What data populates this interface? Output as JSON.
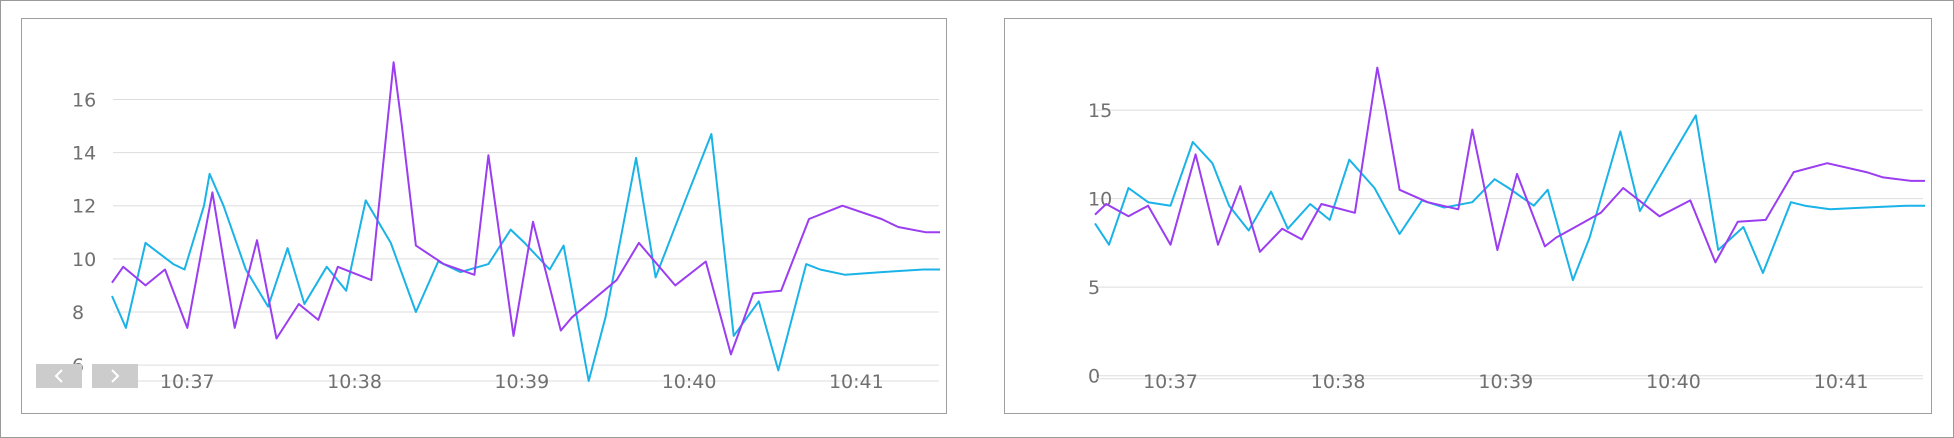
{
  "colors": {
    "series_a": "#1ab3e8",
    "series_b": "#9b3df0",
    "grid": "#dddddd",
    "axis_text": "#707070",
    "nav_button": "#cccccc"
  },
  "navigation": {
    "prev_icon": "chevron-left-icon",
    "next_icon": "chevron-right-icon"
  },
  "chart_data": [
    {
      "type": "line",
      "title": "",
      "xlabel": "",
      "ylabel": "",
      "grid": true,
      "xlim": [
        "10:36:33",
        "10:41:30"
      ],
      "ylim": [
        5.4,
        17.6
      ],
      "x_ticks": [
        "10:37",
        "10:38",
        "10:39",
        "10:40",
        "10:41"
      ],
      "y_ticks": [
        6,
        8,
        10,
        12,
        14,
        16
      ],
      "series": [
        {
          "color": "#1ab3e8",
          "x": [
            "10:36:33",
            "10:36:38",
            "10:36:45",
            "10:36:55",
            "10:36:59",
            "10:37:06",
            "10:37:08",
            "10:37:13",
            "10:37:21",
            "10:37:29",
            "10:37:36",
            "10:37:42",
            "10:37:50",
            "10:37:57",
            "10:38:04",
            "10:38:13",
            "10:38:22",
            "10:38:30",
            "10:38:38",
            "10:38:48",
            "10:38:56",
            "10:39:01",
            "10:39:10",
            "10:39:15",
            "10:39:24",
            "10:39:30",
            "10:39:41",
            "10:39:48",
            "10:39:59",
            "10:40:08",
            "10:40:16",
            "10:40:25",
            "10:40:32",
            "10:40:42",
            "10:40:47",
            "10:40:56",
            "10:41:09",
            "10:41:24",
            "10:41:30"
          ],
          "y": [
            8.6,
            7.4,
            10.6,
            9.8,
            9.6,
            12.0,
            13.2,
            12.0,
            9.6,
            8.2,
            10.4,
            8.3,
            9.7,
            8.8,
            12.2,
            10.6,
            8.0,
            9.9,
            9.5,
            9.8,
            11.1,
            10.6,
            9.6,
            10.5,
            5.4,
            7.8,
            13.8,
            9.3,
            12.3,
            14.7,
            7.1,
            8.4,
            5.8,
            9.8,
            9.6,
            9.4,
            9.5,
            9.6,
            9.6
          ]
        },
        {
          "color": "#9b3df0",
          "x": [
            "10:36:33",
            "10:36:37",
            "10:36:45",
            "10:36:52",
            "10:37:00",
            "10:37:09",
            "10:37:17",
            "10:37:25",
            "10:37:32",
            "10:37:40",
            "10:37:47",
            "10:37:54",
            "10:38:06",
            "10:38:14",
            "10:38:17",
            "10:38:22",
            "10:38:32",
            "10:38:43",
            "10:38:48",
            "10:38:57",
            "10:39:04",
            "10:39:14",
            "10:39:18",
            "10:39:26",
            "10:39:34",
            "10:39:42",
            "10:39:55",
            "10:40:06",
            "10:40:15",
            "10:40:23",
            "10:40:33",
            "10:40:43",
            "10:40:55",
            "10:41:09",
            "10:41:15",
            "10:41:25",
            "10:41:30"
          ],
          "y": [
            9.1,
            9.7,
            9.0,
            9.6,
            7.4,
            12.5,
            7.4,
            10.7,
            7.0,
            8.3,
            7.7,
            9.7,
            9.2,
            17.4,
            15.0,
            10.5,
            9.8,
            9.4,
            13.9,
            7.1,
            11.4,
            7.3,
            7.8,
            8.5,
            9.2,
            10.6,
            9.0,
            9.9,
            6.4,
            8.7,
            8.8,
            11.5,
            12.0,
            11.5,
            11.2,
            11.0,
            11.0
          ]
        }
      ]
    },
    {
      "type": "line",
      "title": "",
      "xlabel": "",
      "ylabel": "",
      "grid": true,
      "xlim": [
        "10:36:33",
        "10:41:30"
      ],
      "ylim": [
        -0.3,
        18.0
      ],
      "x_ticks": [
        "10:37",
        "10:38",
        "10:39",
        "10:40",
        "10:41"
      ],
      "y_ticks": [
        0,
        5,
        10,
        15
      ],
      "series": [
        {
          "color": "#1ab3e8",
          "x": [
            "10:36:33",
            "10:36:38",
            "10:36:45",
            "10:36:52",
            "10:37:00",
            "10:37:08",
            "10:37:15",
            "10:37:21",
            "10:37:28",
            "10:37:36",
            "10:37:42",
            "10:37:50",
            "10:37:57",
            "10:38:04",
            "10:38:13",
            "10:38:22",
            "10:38:30",
            "10:38:38",
            "10:38:48",
            "10:38:56",
            "10:39:01",
            "10:39:10",
            "10:39:15",
            "10:39:24",
            "10:39:30",
            "10:39:41",
            "10:39:48",
            "10:39:59",
            "10:40:08",
            "10:40:16",
            "10:40:25",
            "10:40:32",
            "10:40:42",
            "10:40:47",
            "10:40:56",
            "10:41:09",
            "10:41:24",
            "10:41:30"
          ],
          "y": [
            8.6,
            7.4,
            10.6,
            9.8,
            9.6,
            13.2,
            12.0,
            9.6,
            8.2,
            10.4,
            8.3,
            9.7,
            8.8,
            12.2,
            10.6,
            8.0,
            9.9,
            9.5,
            9.8,
            11.1,
            10.6,
            9.6,
            10.5,
            5.4,
            7.8,
            13.8,
            9.3,
            12.3,
            14.7,
            7.1,
            8.4,
            5.8,
            9.8,
            9.6,
            9.4,
            9.5,
            9.6,
            9.6
          ]
        },
        {
          "color": "#9b3df0",
          "x": [
            "10:36:33",
            "10:36:37",
            "10:36:45",
            "10:36:52",
            "10:37:00",
            "10:37:09",
            "10:37:17",
            "10:37:25",
            "10:37:32",
            "10:37:40",
            "10:37:47",
            "10:37:54",
            "10:38:06",
            "10:38:14",
            "10:38:17",
            "10:38:22",
            "10:38:32",
            "10:38:43",
            "10:38:48",
            "10:38:57",
            "10:39:04",
            "10:39:14",
            "10:39:18",
            "10:39:26",
            "10:39:34",
            "10:39:42",
            "10:39:55",
            "10:40:06",
            "10:40:15",
            "10:40:23",
            "10:40:33",
            "10:40:43",
            "10:40:55",
            "10:41:09",
            "10:41:15",
            "10:41:25",
            "10:41:30"
          ],
          "y": [
            9.1,
            9.7,
            9.0,
            9.6,
            7.4,
            12.5,
            7.4,
            10.7,
            7.0,
            8.3,
            7.7,
            9.7,
            9.2,
            17.4,
            15.0,
            10.5,
            9.8,
            9.4,
            13.9,
            7.1,
            11.4,
            7.3,
            7.8,
            8.5,
            9.2,
            10.6,
            9.0,
            9.9,
            6.4,
            8.7,
            8.8,
            11.5,
            12.0,
            11.5,
            11.2,
            11.0,
            11.0
          ]
        }
      ]
    }
  ]
}
